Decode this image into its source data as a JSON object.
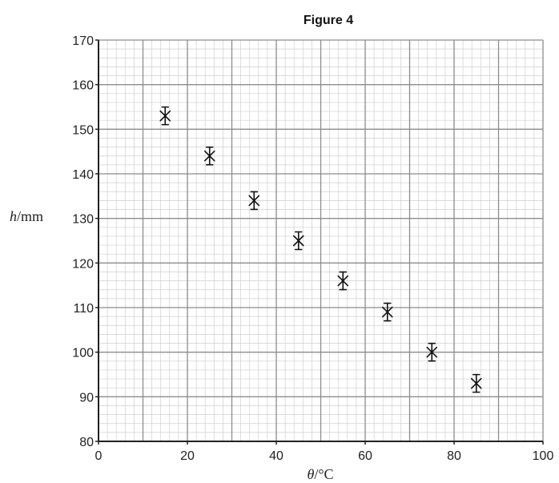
{
  "chart_data": {
    "type": "scatter",
    "title": "Figure 4",
    "xlabel_var": "θ",
    "xlabel_unit": "/°C",
    "ylabel_var": "h",
    "ylabel_unit": "/mm",
    "xlim": [
      0,
      100
    ],
    "ylim": [
      80,
      170
    ],
    "xticks": [
      0,
      20,
      40,
      60,
      80,
      100
    ],
    "yticks": [
      80,
      90,
      100,
      110,
      120,
      130,
      140,
      150,
      160,
      170
    ],
    "grid": "graph paper (major every 10, minor every 2)",
    "x": [
      15,
      25,
      35,
      45,
      55,
      65,
      75,
      85
    ],
    "y": [
      153,
      144,
      134,
      125,
      116,
      109,
      100,
      93
    ],
    "marker": "error-bar cross"
  }
}
